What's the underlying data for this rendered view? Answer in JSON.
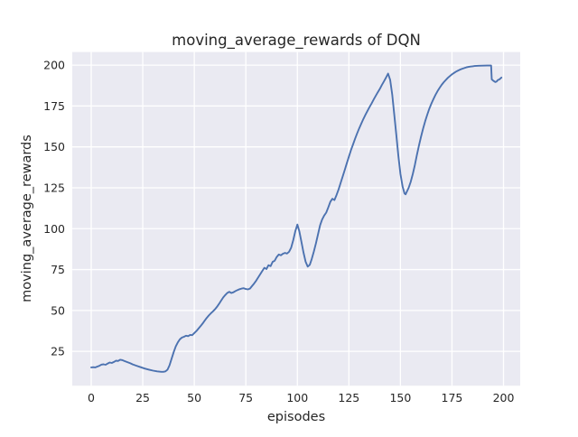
{
  "chart_data": {
    "type": "line",
    "title": "moving_average_rewards of DQN",
    "xlabel": "episodes",
    "ylabel": "moving_average_rewards",
    "x_ticks": [
      0,
      25,
      50,
      75,
      100,
      125,
      150,
      175,
      200
    ],
    "y_ticks": [
      25,
      50,
      75,
      100,
      125,
      150,
      175,
      200
    ],
    "xlim": [
      -9.2,
      208.1
    ],
    "ylim": [
      4,
      208
    ],
    "grid": true,
    "legend": "none",
    "style": "seaborn-darkgrid",
    "colors": {
      "line": "#4C72B0",
      "axes_background": "#EAEAF2",
      "gridline": "#FFFFFF",
      "figure_background": "#FFFFFF",
      "text": "#262626"
    },
    "series": [
      {
        "name": "moving_average_rewards",
        "points": [
          [
            0,
            15.2
          ],
          [
            1,
            15.3
          ],
          [
            2,
            15.2
          ],
          [
            3,
            15.7
          ],
          [
            4,
            16.2
          ],
          [
            5,
            16.9
          ],
          [
            6,
            17.1
          ],
          [
            7,
            16.8
          ],
          [
            8,
            17.6
          ],
          [
            9,
            18.2
          ],
          [
            10,
            17.9
          ],
          [
            11,
            18.5
          ],
          [
            12,
            19.3
          ],
          [
            13,
            19.1
          ],
          [
            14,
            19.9
          ],
          [
            15,
            19.7
          ],
          [
            16,
            19.2
          ],
          [
            17,
            18.7
          ],
          [
            18,
            18.2
          ],
          [
            19,
            17.7
          ],
          [
            20,
            17.1
          ],
          [
            22,
            16.2
          ],
          [
            24,
            15.3
          ],
          [
            26,
            14.5
          ],
          [
            28,
            13.8
          ],
          [
            30,
            13.2
          ],
          [
            32,
            12.8
          ],
          [
            34,
            12.5
          ],
          [
            35,
            12.5
          ],
          [
            36,
            12.8
          ],
          [
            37,
            13.8
          ],
          [
            38,
            16.5
          ],
          [
            39,
            20.5
          ],
          [
            40,
            24.5
          ],
          [
            41,
            28.0
          ],
          [
            42,
            30.5
          ],
          [
            43,
            32.3
          ],
          [
            44,
            33.4
          ],
          [
            45,
            33.9
          ],
          [
            46,
            34.6
          ],
          [
            47,
            34.3
          ],
          [
            48,
            35.1
          ],
          [
            49,
            34.9
          ],
          [
            50,
            36.2
          ],
          [
            51,
            37.4
          ],
          [
            52,
            38.9
          ],
          [
            53,
            40.4
          ],
          [
            54,
            42.0
          ],
          [
            55,
            43.7
          ],
          [
            56,
            45.4
          ],
          [
            57,
            46.9
          ],
          [
            58,
            48.2
          ],
          [
            59,
            49.4
          ],
          [
            60,
            50.7
          ],
          [
            61,
            52.2
          ],
          [
            62,
            54.0
          ],
          [
            63,
            56.0
          ],
          [
            64,
            57.9
          ],
          [
            65,
            59.4
          ],
          [
            66,
            60.7
          ],
          [
            67,
            61.4
          ],
          [
            68,
            60.7
          ],
          [
            69,
            61.1
          ],
          [
            70,
            61.9
          ],
          [
            71,
            62.5
          ],
          [
            72,
            63.0
          ],
          [
            73,
            63.4
          ],
          [
            74,
            63.6
          ],
          [
            75,
            63.1
          ],
          [
            76,
            62.9
          ],
          [
            77,
            63.4
          ],
          [
            78,
            64.9
          ],
          [
            79,
            66.4
          ],
          [
            80,
            68.2
          ],
          [
            81,
            70.2
          ],
          [
            82,
            72.2
          ],
          [
            83,
            74.2
          ],
          [
            84,
            76.1
          ],
          [
            85,
            75.3
          ],
          [
            86,
            77.7
          ],
          [
            87,
            77.1
          ],
          [
            88,
            79.7
          ],
          [
            89,
            80.4
          ],
          [
            90,
            82.7
          ],
          [
            91,
            84.2
          ],
          [
            92,
            83.7
          ],
          [
            93,
            84.7
          ],
          [
            94,
            85.2
          ],
          [
            95,
            84.8
          ],
          [
            96,
            85.9
          ],
          [
            97,
            88.4
          ],
          [
            98,
            93.0
          ],
          [
            99,
            98.5
          ],
          [
            100,
            102.5
          ],
          [
            101,
            98.3
          ],
          [
            102,
            91.8
          ],
          [
            103,
            85.3
          ],
          [
            104,
            79.8
          ],
          [
            105,
            76.8
          ],
          [
            106,
            77.9
          ],
          [
            107,
            81.5
          ],
          [
            108,
            86.0
          ],
          [
            109,
            91.0
          ],
          [
            110,
            96.5
          ],
          [
            111,
            102.0
          ],
          [
            112,
            105.5
          ],
          [
            113,
            108.0
          ],
          [
            114,
            109.8
          ],
          [
            115,
            113.0
          ],
          [
            116,
            116.5
          ],
          [
            117,
            118.3
          ],
          [
            118,
            117.5
          ],
          [
            119,
            120.5
          ],
          [
            120,
            124.0
          ],
          [
            121,
            128.0
          ],
          [
            122,
            132.0
          ],
          [
            123,
            136.0
          ],
          [
            124,
            140.0
          ],
          [
            125,
            144.0
          ],
          [
            126,
            148.0
          ],
          [
            127,
            151.5
          ],
          [
            128,
            155.0
          ],
          [
            129,
            158.2
          ],
          [
            130,
            161.3
          ],
          [
            131,
            164.2
          ],
          [
            132,
            167.0
          ],
          [
            133,
            169.6
          ],
          [
            134,
            172.0
          ],
          [
            135,
            174.3
          ],
          [
            136,
            176.5
          ],
          [
            137,
            178.9
          ],
          [
            138,
            181.2
          ],
          [
            139,
            183.4
          ],
          [
            140,
            185.5
          ],
          [
            141,
            187.8
          ],
          [
            142,
            190.0
          ],
          [
            143,
            192.3
          ],
          [
            144,
            194.8
          ],
          [
            145,
            191.0
          ],
          [
            146,
            182.0
          ],
          [
            147,
            170.0
          ],
          [
            148,
            157.5
          ],
          [
            149,
            144.5
          ],
          [
            150,
            133.5
          ],
          [
            151,
            126.0
          ],
          [
            152,
            121.5
          ],
          [
            152.5,
            121.0
          ],
          [
            153,
            122.3
          ],
          [
            154,
            125.0
          ],
          [
            155,
            128.7
          ],
          [
            156,
            133.5
          ],
          [
            157,
            139.0
          ],
          [
            158,
            145.0
          ],
          [
            159,
            150.8
          ],
          [
            160,
            156.2
          ],
          [
            161,
            161.2
          ],
          [
            162,
            165.7
          ],
          [
            163,
            169.7
          ],
          [
            164,
            173.2
          ],
          [
            165,
            176.4
          ],
          [
            166,
            179.2
          ],
          [
            167,
            181.8
          ],
          [
            168,
            184.1
          ],
          [
            169,
            186.1
          ],
          [
            170,
            187.9
          ],
          [
            171,
            189.5
          ],
          [
            172,
            190.9
          ],
          [
            173,
            192.2
          ],
          [
            174,
            193.3
          ],
          [
            175,
            194.3
          ],
          [
            176,
            195.2
          ],
          [
            177,
            196.0
          ],
          [
            178,
            196.7
          ],
          [
            179,
            197.3
          ],
          [
            180,
            197.8
          ],
          [
            181,
            198.2
          ],
          [
            182,
            198.6
          ],
          [
            183,
            198.9
          ],
          [
            184,
            199.1
          ],
          [
            185,
            199.3
          ],
          [
            186,
            199.45
          ],
          [
            187,
            199.55
          ],
          [
            188,
            199.6
          ],
          [
            190,
            199.65
          ],
          [
            192,
            199.7
          ],
          [
            194,
            199.7
          ],
          [
            194.3,
            191.3
          ],
          [
            195,
            190.5
          ],
          [
            196,
            189.6
          ],
          [
            196.6,
            189.9
          ],
          [
            197.3,
            190.9
          ],
          [
            198,
            191.2
          ],
          [
            199,
            192.4
          ]
        ]
      }
    ]
  }
}
